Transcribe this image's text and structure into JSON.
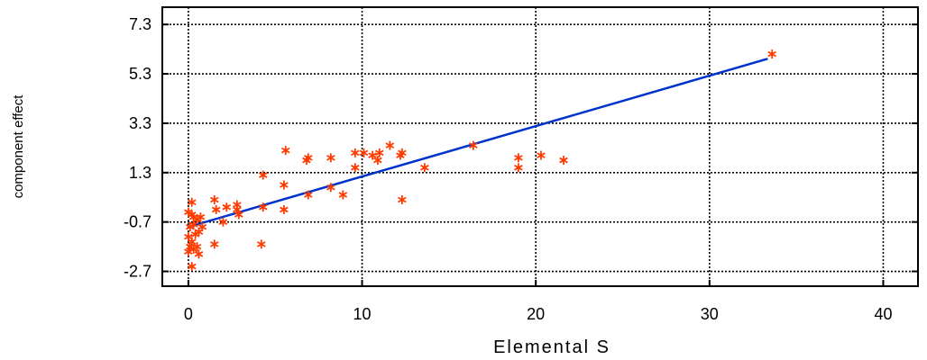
{
  "chart_data": {
    "type": "scatter",
    "xlabel": "Elemental S",
    "ylabel": "component effect",
    "xlim": [
      -1.5,
      42
    ],
    "ylim": [
      -3.3,
      8
    ],
    "x_ticks": [
      0,
      10,
      20,
      30,
      40
    ],
    "y_ticks": [
      -2.7,
      -0.7,
      1.3,
      3.3,
      5.3,
      7.3
    ],
    "x_tick_labels": [
      "0",
      "10",
      "20",
      "30",
      "40"
    ],
    "y_tick_labels": [
      "-2.7",
      "-0.7",
      "1.3",
      "3.3",
      "5.3",
      "7.3"
    ],
    "grid": true,
    "legend": "none",
    "marker": "asterisk",
    "colors": {
      "points": "#ff3b00",
      "line": "#0033cc",
      "grid": "#000000",
      "frame": "#000000"
    },
    "points": [
      {
        "x": 0.2,
        "y": -2.5
      },
      {
        "x": 0.0,
        "y": -1.9
      },
      {
        "x": 0.1,
        "y": -1.7
      },
      {
        "x": 0.3,
        "y": -1.8
      },
      {
        "x": 0.5,
        "y": -1.7
      },
      {
        "x": 0.6,
        "y": -2.0
      },
      {
        "x": 0.2,
        "y": -1.5
      },
      {
        "x": 0.0,
        "y": -1.3
      },
      {
        "x": 0.4,
        "y": -1.2
      },
      {
        "x": 0.6,
        "y": -1.1
      },
      {
        "x": 0.8,
        "y": -0.9
      },
      {
        "x": 0.1,
        "y": -0.9
      },
      {
        "x": 0.3,
        "y": -0.8
      },
      {
        "x": 0.5,
        "y": -0.6
      },
      {
        "x": 0.7,
        "y": -0.5
      },
      {
        "x": 0.2,
        "y": -0.4
      },
      {
        "x": 0.0,
        "y": -0.3
      },
      {
        "x": 0.3,
        "y": -0.5
      },
      {
        "x": 0.2,
        "y": 0.1
      },
      {
        "x": 1.5,
        "y": -1.6
      },
      {
        "x": 1.6,
        "y": -0.2
      },
      {
        "x": 1.5,
        "y": 0.2
      },
      {
        "x": 2.0,
        "y": -0.7
      },
      {
        "x": 2.2,
        "y": -0.1
      },
      {
        "x": 2.8,
        "y": -0.2
      },
      {
        "x": 2.8,
        "y": 0.0
      },
      {
        "x": 2.9,
        "y": -0.4
      },
      {
        "x": 4.2,
        "y": -1.6
      },
      {
        "x": 4.3,
        "y": -0.1
      },
      {
        "x": 4.3,
        "y": 1.2
      },
      {
        "x": 5.5,
        "y": 0.8
      },
      {
        "x": 5.5,
        "y": -0.2
      },
      {
        "x": 5.6,
        "y": 2.2
      },
      {
        "x": 6.8,
        "y": 1.8
      },
      {
        "x": 6.9,
        "y": 1.9
      },
      {
        "x": 6.9,
        "y": 0.4
      },
      {
        "x": 8.2,
        "y": 1.9
      },
      {
        "x": 8.2,
        "y": 0.7
      },
      {
        "x": 8.9,
        "y": 0.4
      },
      {
        "x": 9.6,
        "y": 1.5
      },
      {
        "x": 9.6,
        "y": 2.1
      },
      {
        "x": 10.1,
        "y": 2.1
      },
      {
        "x": 10.6,
        "y": 2.0
      },
      {
        "x": 10.9,
        "y": 1.8
      },
      {
        "x": 11.0,
        "y": 2.1
      },
      {
        "x": 11.6,
        "y": 2.4
      },
      {
        "x": 12.2,
        "y": 2.0
      },
      {
        "x": 12.3,
        "y": 2.1
      },
      {
        "x": 12.3,
        "y": 0.2
      },
      {
        "x": 13.6,
        "y": 1.5
      },
      {
        "x": 16.4,
        "y": 2.4
      },
      {
        "x": 19.0,
        "y": 1.9
      },
      {
        "x": 19.0,
        "y": 1.5
      },
      {
        "x": 20.3,
        "y": 2.0
      },
      {
        "x": 21.6,
        "y": 1.8
      },
      {
        "x": 33.6,
        "y": 6.1
      }
    ],
    "fit_line": {
      "x": [
        0,
        33.3
      ],
      "y": [
        -0.9,
        5.9
      ]
    }
  }
}
